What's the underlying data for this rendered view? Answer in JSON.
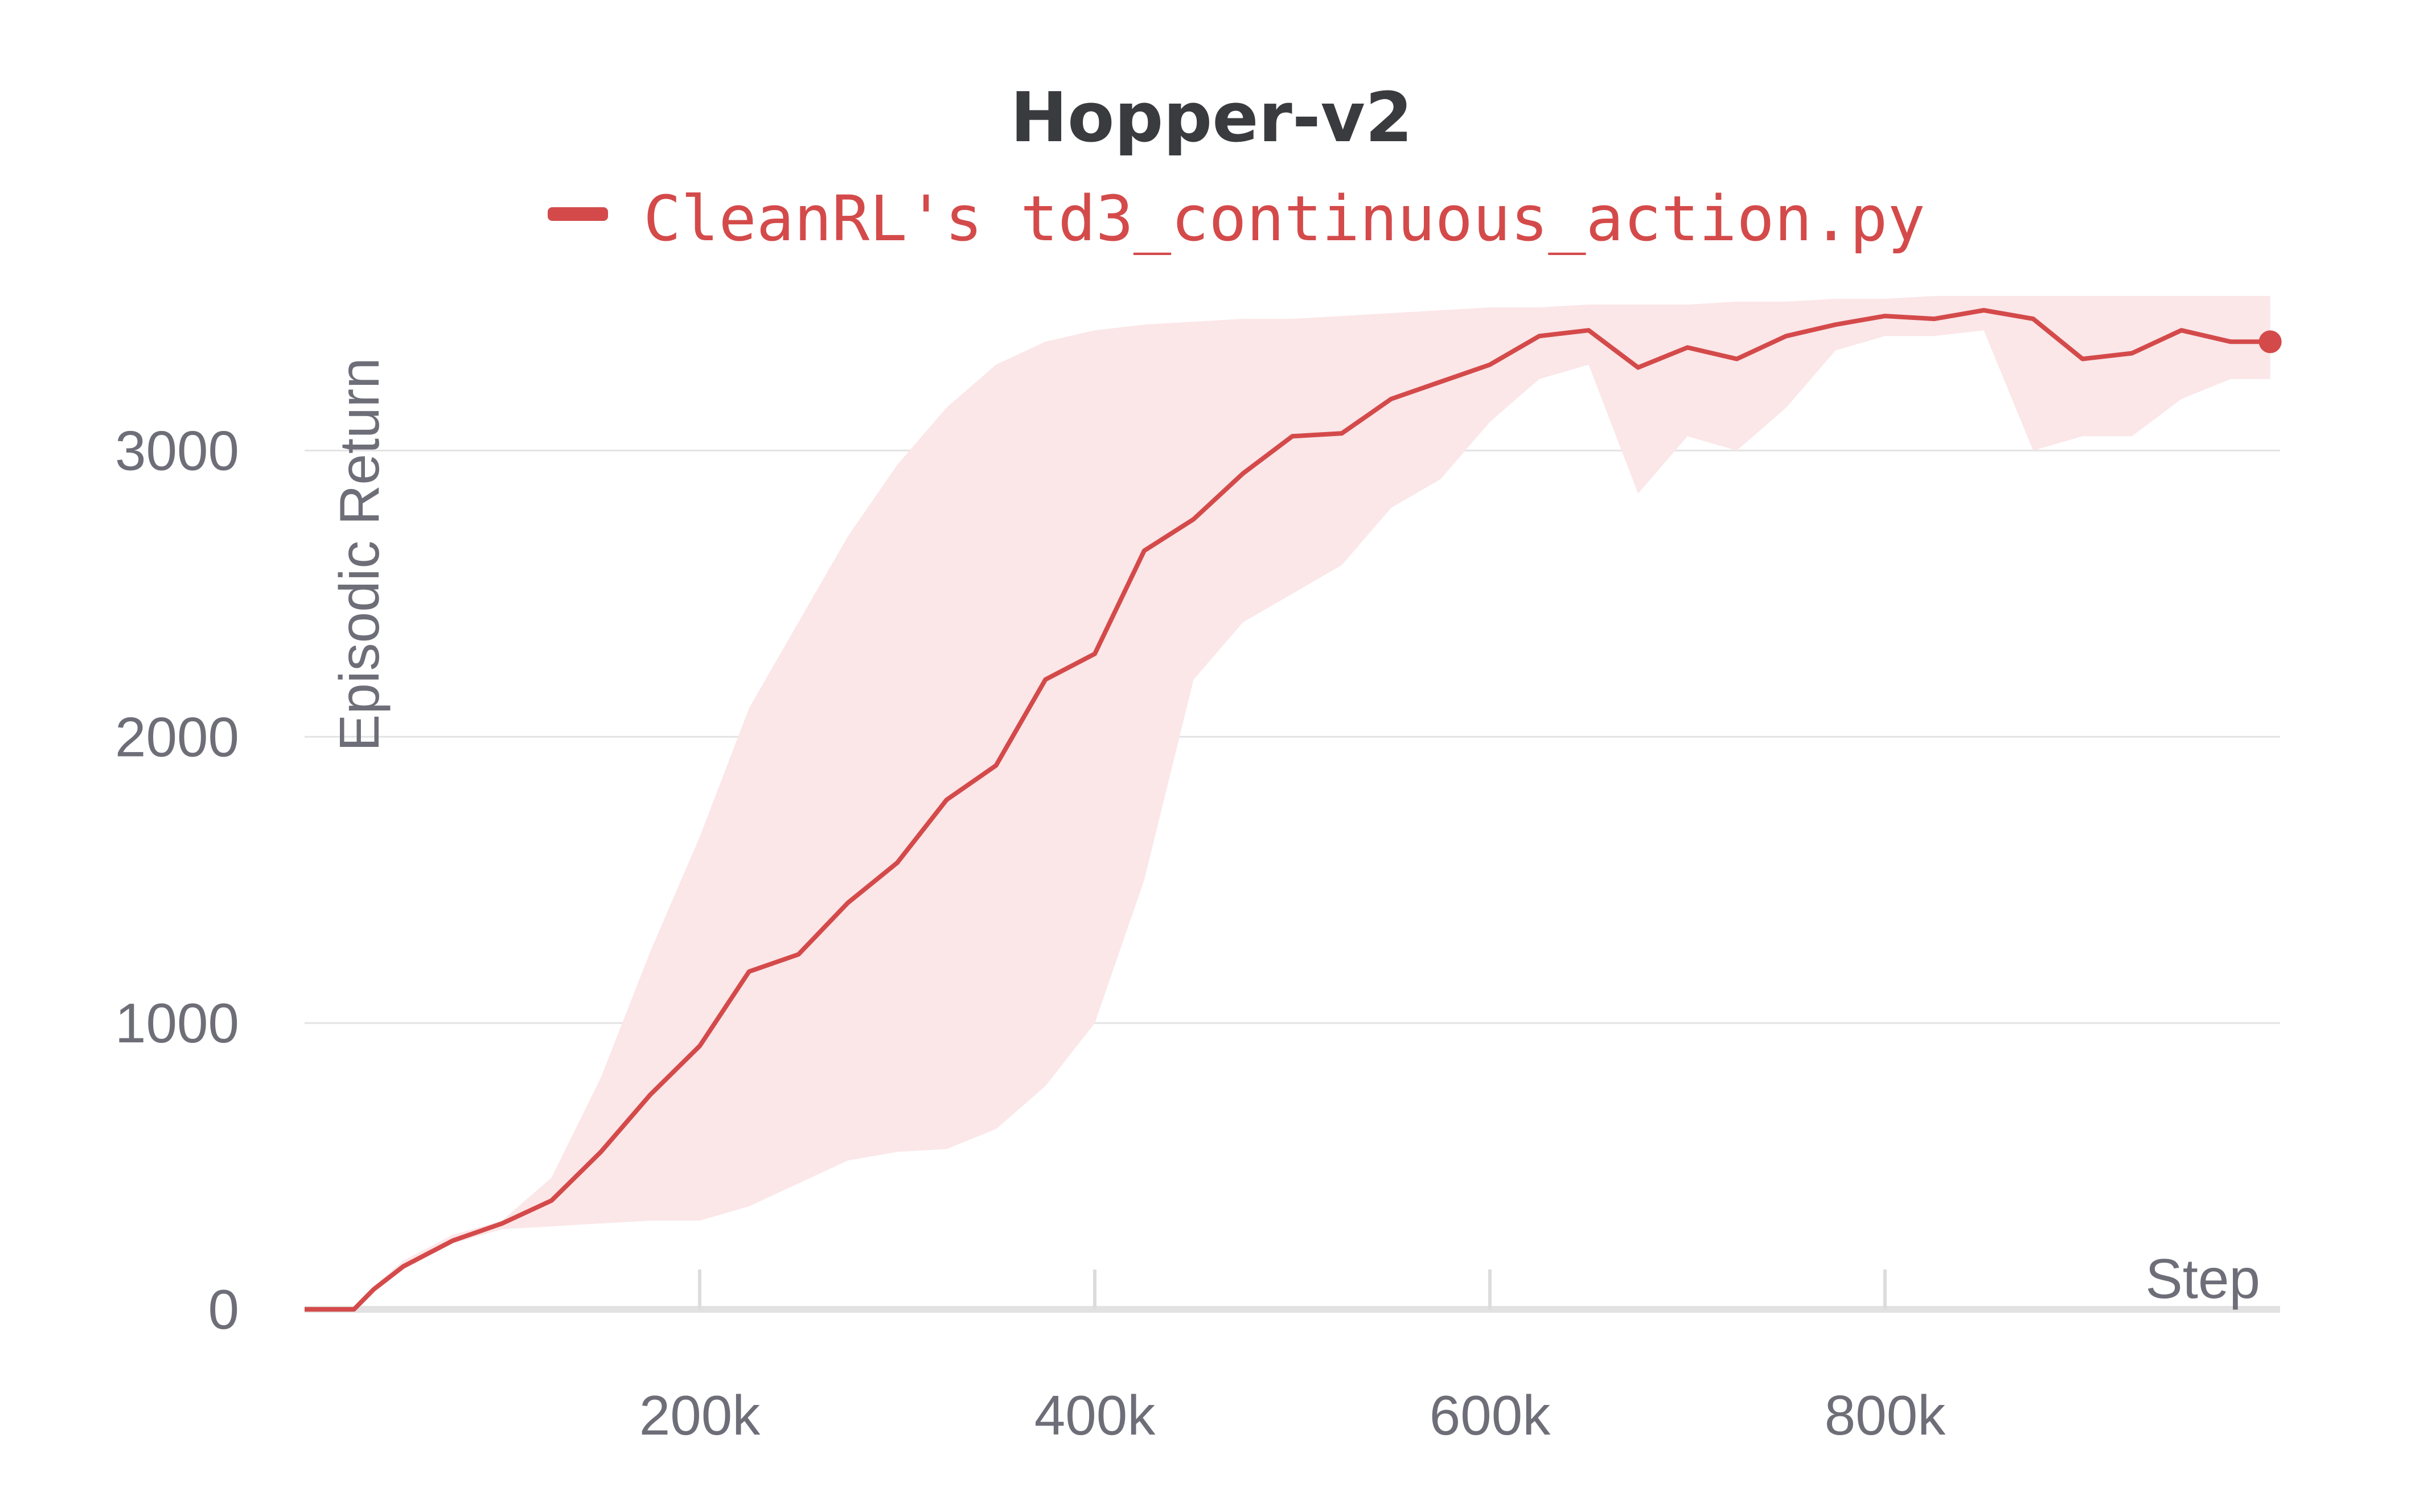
{
  "chart_data": {
    "type": "line",
    "title": "Hopper-v2",
    "xlabel": "Step",
    "ylabel": "Episodic Return",
    "xlim": [
      0,
      1000000
    ],
    "ylim": [
      0,
      3500
    ],
    "x_ticks": [
      200000,
      400000,
      600000,
      800000
    ],
    "x_tick_labels": [
      "200k",
      "400k",
      "600k",
      "800k"
    ],
    "y_ticks": [
      0,
      1000,
      2000,
      3000
    ],
    "y_tick_labels": [
      "0",
      "1000",
      "2000",
      "3000"
    ],
    "grid": true,
    "legend_position": "top-center",
    "colors": {
      "line": "#d44a4a",
      "band": "#fbe6e8",
      "grid": "#e3e3e3",
      "axis": "#dddddd"
    },
    "series": [
      {
        "name": "CleanRL's td3_continuous_action.py",
        "x": [
          0,
          25000,
          35000,
          50000,
          75000,
          100000,
          125000,
          150000,
          175000,
          200000,
          225000,
          250000,
          275000,
          300000,
          325000,
          350000,
          375000,
          400000,
          425000,
          450000,
          475000,
          500000,
          525000,
          550000,
          575000,
          600000,
          625000,
          650000,
          675000,
          700000,
          725000,
          750000,
          775000,
          800000,
          825000,
          850000,
          875000,
          900000,
          925000,
          950000,
          975000,
          995000
        ],
        "y": [
          0,
          0,
          70,
          150,
          240,
          300,
          380,
          550,
          750,
          920,
          1180,
          1240,
          1420,
          1560,
          1780,
          1900,
          2200,
          2290,
          2650,
          2760,
          2920,
          3050,
          3060,
          3180,
          3240,
          3300,
          3400,
          3420,
          3290,
          3360,
          3320,
          3400,
          3440,
          3470,
          3460,
          3490,
          3460,
          3320,
          3340,
          3420,
          3380,
          3380
        ],
        "lower": [
          0,
          0,
          60,
          140,
          230,
          280,
          290,
          300,
          310,
          310,
          360,
          440,
          520,
          550,
          560,
          630,
          780,
          1000,
          1500,
          2200,
          2400,
          2500,
          2600,
          2800,
          2900,
          3100,
          3250,
          3300,
          2850,
          3050,
          3000,
          3150,
          3350,
          3400,
          3400,
          3420,
          3000,
          3050,
          3050,
          3180,
          3250,
          3250
        ],
        "upper": [
          0,
          0,
          80,
          170,
          260,
          310,
          460,
          810,
          1250,
          1650,
          2100,
          2400,
          2700,
          2950,
          3150,
          3300,
          3380,
          3420,
          3440,
          3450,
          3460,
          3460,
          3470,
          3480,
          3490,
          3500,
          3500,
          3510,
          3510,
          3510,
          3520,
          3520,
          3530,
          3530,
          3540,
          3540,
          3540,
          3540,
          3540,
          3540,
          3540,
          3540
        ]
      }
    ]
  }
}
